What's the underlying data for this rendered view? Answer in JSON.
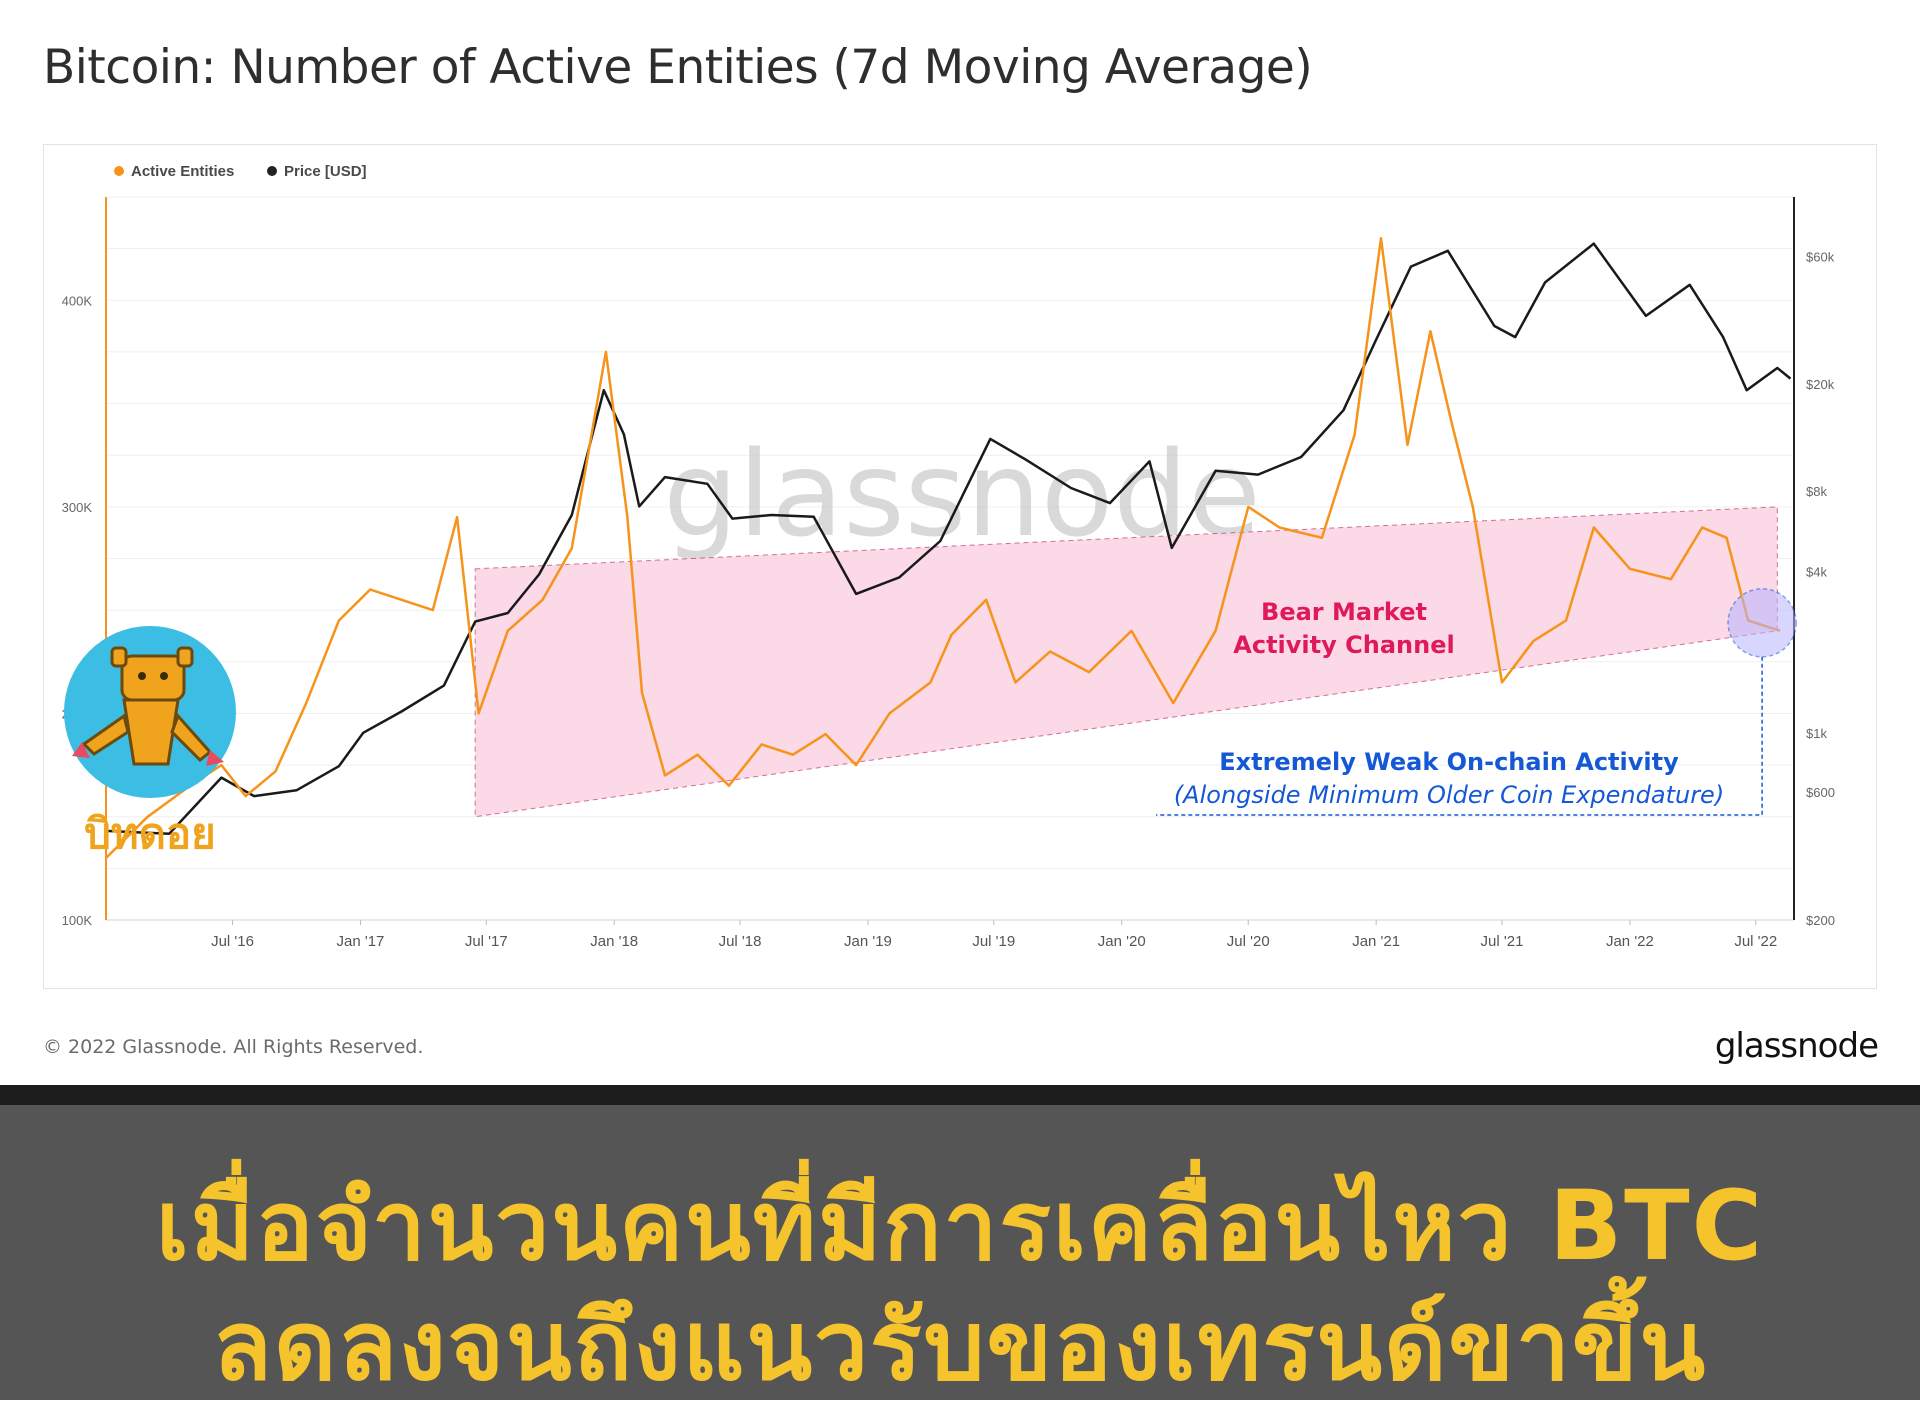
{
  "title": "Bitcoin: Number of Active Entities (7d Moving Average)",
  "copyright": "© 2022 Glassnode. All Rights Reserved.",
  "brand": "glassnode",
  "watermark": "glassnode",
  "mascot_label": "บิทดอย",
  "banner": {
    "line1": "เมื่อจำนวนคนที่มีการเคลื่อนไหว BTC",
    "line2": "ลดลงจนถึงแนวรับของเทรนด์ขาขึ้น"
  },
  "colors": {
    "active_entities": "#f7931a",
    "price": "#1a1a1a",
    "channel_fill": "#fbd3e3",
    "channel_label": "#e0195a",
    "weak_label": "#1458d6",
    "banner_text": "#f5c42c",
    "banner_bg": "#555555"
  },
  "annotations": {
    "channel_label_1": "Bear Market",
    "channel_label_2": "Activity Channel",
    "weak_label_1": "Extremely Weak On-chain Activity",
    "weak_label_2": "(Alongside Minimum Older Coin Expendature)"
  },
  "chart_data": {
    "type": "line",
    "legend": [
      "Active Entities",
      "Price [USD]"
    ],
    "legend_position": "top-left",
    "x_ticks": [
      "Jul '16",
      "Jan '17",
      "Jul '17",
      "Jan '18",
      "Jul '18",
      "Jan '19",
      "Jul '19",
      "Jan '20",
      "Jul '20",
      "Jan '21",
      "Jul '21",
      "Jan '22",
      "Jul '22"
    ],
    "y_left_ticks": [
      "100K",
      "200K",
      "300K",
      "400K"
    ],
    "y_right_ticks": [
      "$200",
      "$600",
      "$1k",
      "$4k",
      "$8k",
      "$20k",
      "$60k"
    ],
    "y_left_range": [
      100000,
      450000
    ],
    "y_right_range": [
      200,
      100000
    ],
    "y_right_scale": "log",
    "grid": true,
    "series": [
      {
        "name": "Active Entities",
        "axis": "left",
        "points": [
          [
            "2016-01-01",
            130000
          ],
          [
            "2016-03-01",
            150000
          ],
          [
            "2016-05-01",
            165000
          ],
          [
            "2016-06-15",
            175000
          ],
          [
            "2016-07-20",
            160000
          ],
          [
            "2016-09-01",
            172000
          ],
          [
            "2016-10-15",
            205000
          ],
          [
            "2016-12-01",
            245000
          ],
          [
            "2017-01-15",
            260000
          ],
          [
            "2017-03-01",
            255000
          ],
          [
            "2017-04-15",
            250000
          ],
          [
            "2017-05-20",
            295000
          ],
          [
            "2017-06-20",
            200000
          ],
          [
            "2017-08-01",
            240000
          ],
          [
            "2017-09-20",
            255000
          ],
          [
            "2017-11-01",
            280000
          ],
          [
            "2017-12-20",
            375000
          ],
          [
            "2018-01-20",
            295000
          ],
          [
            "2018-02-10",
            210000
          ],
          [
            "2018-03-15",
            170000
          ],
          [
            "2018-05-01",
            180000
          ],
          [
            "2018-06-15",
            165000
          ],
          [
            "2018-08-01",
            185000
          ],
          [
            "2018-09-15",
            180000
          ],
          [
            "2018-11-01",
            190000
          ],
          [
            "2018-12-15",
            175000
          ],
          [
            "2019-02-01",
            200000
          ],
          [
            "2019-04-01",
            215000
          ],
          [
            "2019-05-01",
            238000
          ],
          [
            "2019-06-20",
            255000
          ],
          [
            "2019-08-01",
            215000
          ],
          [
            "2019-09-20",
            230000
          ],
          [
            "2019-11-15",
            220000
          ],
          [
            "2020-01-15",
            240000
          ],
          [
            "2020-03-15",
            205000
          ],
          [
            "2020-05-15",
            240000
          ],
          [
            "2020-07-01",
            300000
          ],
          [
            "2020-08-15",
            290000
          ],
          [
            "2020-10-15",
            285000
          ],
          [
            "2020-12-01",
            335000
          ],
          [
            "2021-01-08",
            430000
          ],
          [
            "2021-02-15",
            330000
          ],
          [
            "2021-03-20",
            385000
          ],
          [
            "2021-04-20",
            340000
          ],
          [
            "2021-05-20",
            300000
          ],
          [
            "2021-07-01",
            215000
          ],
          [
            "2021-08-15",
            235000
          ],
          [
            "2021-10-01",
            245000
          ],
          [
            "2021-11-10",
            290000
          ],
          [
            "2022-01-01",
            270000
          ],
          [
            "2022-03-01",
            265000
          ],
          [
            "2022-04-15",
            290000
          ],
          [
            "2022-05-20",
            285000
          ],
          [
            "2022-06-20",
            245000
          ],
          [
            "2022-08-05",
            240000
          ]
        ]
      },
      {
        "name": "Price [USD]",
        "axis": "right",
        "points": [
          [
            "2016-01-01",
            430
          ],
          [
            "2016-04-01",
            420
          ],
          [
            "2016-06-15",
            680
          ],
          [
            "2016-08-01",
            580
          ],
          [
            "2016-10-01",
            610
          ],
          [
            "2016-12-01",
            750
          ],
          [
            "2017-01-05",
            1000
          ],
          [
            "2017-03-01",
            1200
          ],
          [
            "2017-05-01",
            1500
          ],
          [
            "2017-06-15",
            2600
          ],
          [
            "2017-08-01",
            2800
          ],
          [
            "2017-09-15",
            3900
          ],
          [
            "2017-11-01",
            6500
          ],
          [
            "2017-12-17",
            19000
          ],
          [
            "2018-01-15",
            13000
          ],
          [
            "2018-02-06",
            7000
          ],
          [
            "2018-03-15",
            9000
          ],
          [
            "2018-05-15",
            8500
          ],
          [
            "2018-06-20",
            6300
          ],
          [
            "2018-08-15",
            6500
          ],
          [
            "2018-10-15",
            6400
          ],
          [
            "2018-12-15",
            3300
          ],
          [
            "2019-02-15",
            3800
          ],
          [
            "2019-04-15",
            5200
          ],
          [
            "2019-06-26",
            12500
          ],
          [
            "2019-08-15",
            10500
          ],
          [
            "2019-10-20",
            8200
          ],
          [
            "2019-12-15",
            7200
          ],
          [
            "2020-02-10",
            10300
          ],
          [
            "2020-03-13",
            4900
          ],
          [
            "2020-05-15",
            9500
          ],
          [
            "2020-07-15",
            9200
          ],
          [
            "2020-09-15",
            10700
          ],
          [
            "2020-11-15",
            16000
          ],
          [
            "2020-12-31",
            29000
          ],
          [
            "2021-02-20",
            55000
          ],
          [
            "2021-04-14",
            63000
          ],
          [
            "2021-06-20",
            33000
          ],
          [
            "2021-07-20",
            30000
          ],
          [
            "2021-09-01",
            48000
          ],
          [
            "2021-11-10",
            67000
          ],
          [
            "2022-01-24",
            36000
          ],
          [
            "2022-03-28",
            47000
          ],
          [
            "2022-05-15",
            30000
          ],
          [
            "2022-06-18",
            19000
          ],
          [
            "2022-08-01",
            23000
          ],
          [
            "2022-08-20",
            21000
          ]
        ]
      }
    ],
    "channel": {
      "upper": [
        [
          "2017-06-15",
          270000
        ],
        [
          "2022-08-01",
          300000
        ]
      ],
      "lower": [
        [
          "2017-06-15",
          150000
        ],
        [
          "2022-08-01",
          240000
        ]
      ]
    }
  }
}
